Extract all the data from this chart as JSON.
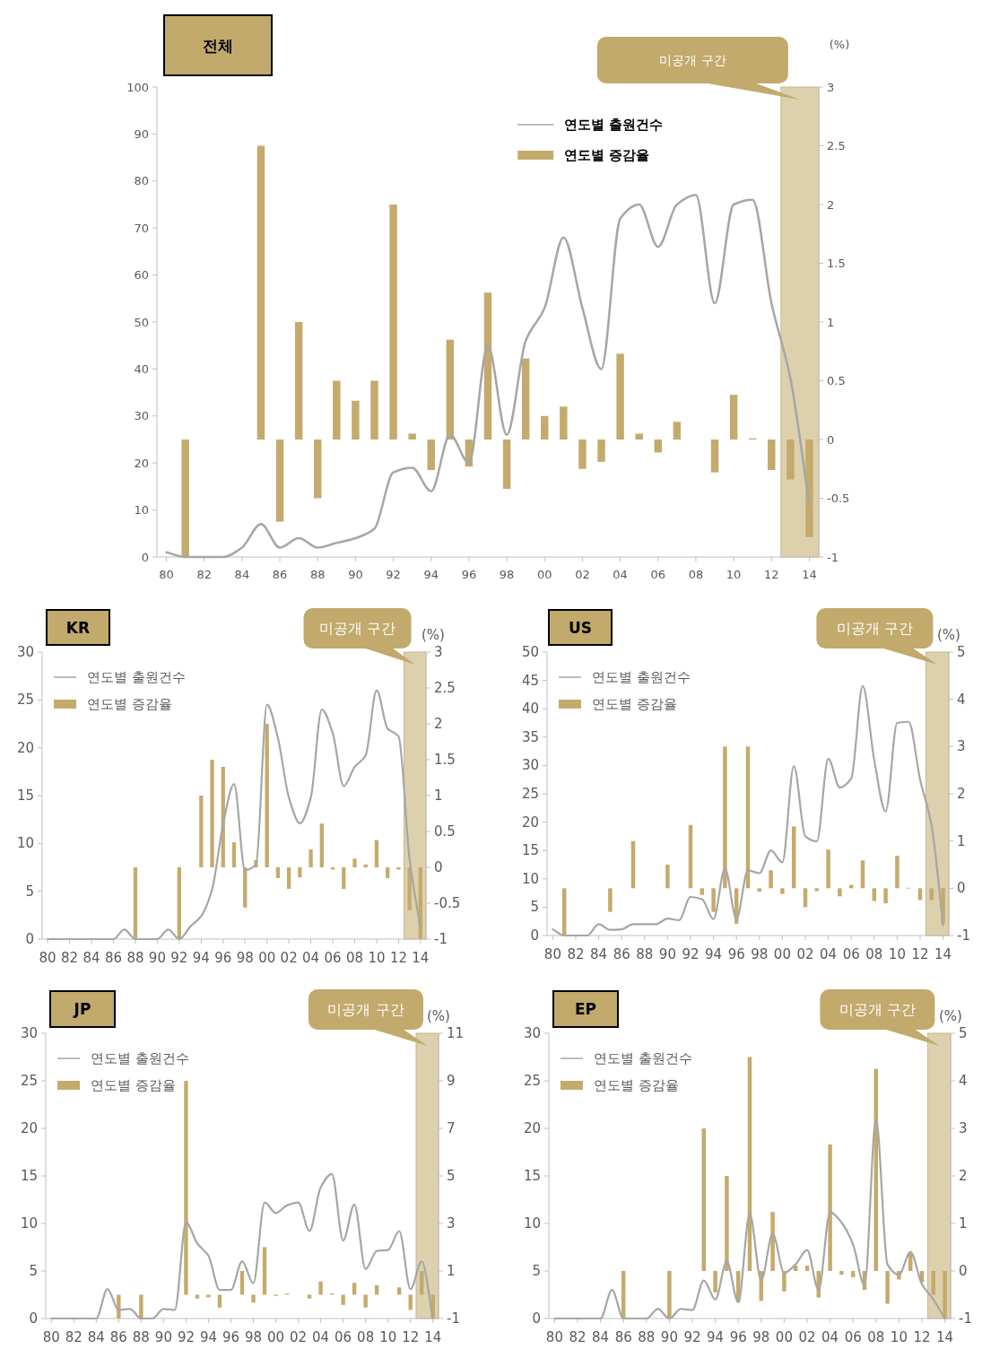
{
  "chart_data": [
    {
      "type": "bar",
      "title": "전체",
      "y2label": "(%)",
      "legend": "top",
      "x": [
        1980,
        1981,
        1982,
        1983,
        1984,
        1985,
        1986,
        1987,
        1988,
        1989,
        1990,
        1991,
        1992,
        1993,
        1994,
        1995,
        1996,
        1997,
        1998,
        1999,
        2000,
        2001,
        2002,
        2003,
        2004,
        2005,
        2006,
        2007,
        2008,
        2009,
        2010,
        2011,
        2012,
        2013,
        2014
      ],
      "xlim": [
        1979.5,
        2014.5
      ],
      "xticks": [
        {
          "value": 1980,
          "label": "80"
        },
        {
          "value": 1982,
          "label": "82"
        },
        {
          "value": 1984,
          "label": "84"
        },
        {
          "value": 1986,
          "label": "86"
        },
        {
          "value": 1988,
          "label": "88"
        },
        {
          "value": 1990,
          "label": "90"
        },
        {
          "value": 1992,
          "label": "92"
        },
        {
          "value": 1994,
          "label": "94"
        },
        {
          "value": 1996,
          "label": "96"
        },
        {
          "value": 1998,
          "label": "98"
        },
        {
          "value": 2000,
          "label": "00"
        },
        {
          "value": 2002,
          "label": "02"
        },
        {
          "value": 2004,
          "label": "04"
        },
        {
          "value": 2006,
          "label": "06"
        },
        {
          "value": 2008,
          "label": "08"
        },
        {
          "value": 2010,
          "label": "10"
        },
        {
          "value": 2012,
          "label": "12"
        },
        {
          "value": 2014,
          "label": "14"
        }
      ],
      "ylim": [
        0,
        100
      ],
      "yticks": [
        0,
        10,
        20,
        30,
        40,
        50,
        60,
        70,
        80,
        90,
        100
      ],
      "y2lim": [
        -1,
        3
      ],
      "y2ticks": [
        -1,
        -0.5,
        0,
        0.5,
        1,
        1.5,
        2,
        2.5,
        3
      ],
      "bands": [
        {
          "axis": "x",
          "from": 2012.5,
          "to": 2014.5,
          "label": "미공개 구간",
          "color": "#ddd0ad"
        }
      ],
      "series": [
        {
          "name": "연도별 출원건수",
          "type": "line",
          "color": "#a6a6a6",
          "values": [
            1,
            0,
            0,
            0,
            2,
            7,
            2,
            4,
            2,
            3,
            4,
            6,
            18,
            19,
            14,
            26,
            20,
            45,
            26,
            46,
            53,
            68,
            53,
            40,
            72,
            75,
            66,
            75,
            77,
            54,
            75,
            76,
            54,
            38,
            11
          ]
        },
        {
          "name": "연도별 증감율",
          "type": "bar",
          "axis": "y2",
          "color": "#c4aa6c",
          "values": [
            null,
            -1,
            null,
            null,
            null,
            2.5,
            -0.7,
            1,
            -0.5,
            0.5,
            0.33,
            0.5,
            2,
            0.05,
            -0.26,
            0.85,
            -0.23,
            1.25,
            -0.42,
            0.69,
            0.2,
            0.28,
            -0.25,
            -0.19,
            0.73,
            0.05,
            -0.11,
            0.15,
            null,
            -0.28,
            0.38,
            0.01,
            -0.26,
            -0.34,
            -0.83
          ]
        }
      ]
    },
    {
      "type": "bar",
      "title": "KR",
      "y2label": "(%)",
      "legend": "top left",
      "x": [
        1980,
        1981,
        1982,
        1983,
        1984,
        1985,
        1986,
        1987,
        1988,
        1989,
        1990,
        1991,
        1992,
        1993,
        1994,
        1995,
        1996,
        1997,
        1998,
        1999,
        2000,
        2001,
        2002,
        2003,
        2004,
        2005,
        2006,
        2007,
        2008,
        2009,
        2010,
        2011,
        2012,
        2013,
        2014
      ],
      "xlim": [
        1979.5,
        2014.5
      ],
      "xticks": [
        {
          "value": 1980,
          "label": "80"
        },
        {
          "value": 1982,
          "label": "82"
        },
        {
          "value": 1984,
          "label": "84"
        },
        {
          "value": 1986,
          "label": "86"
        },
        {
          "value": 1988,
          "label": "88"
        },
        {
          "value": 1990,
          "label": "90"
        },
        {
          "value": 1992,
          "label": "92"
        },
        {
          "value": 1994,
          "label": "94"
        },
        {
          "value": 1996,
          "label": "96"
        },
        {
          "value": 1998,
          "label": "98"
        },
        {
          "value": 2000,
          "label": "00"
        },
        {
          "value": 2002,
          "label": "02"
        },
        {
          "value": 2004,
          "label": "04"
        },
        {
          "value": 2006,
          "label": "06"
        },
        {
          "value": 2008,
          "label": "08"
        },
        {
          "value": 2010,
          "label": "10"
        },
        {
          "value": 2012,
          "label": "12"
        },
        {
          "value": 2014,
          "label": "14"
        }
      ],
      "ylim": [
        0,
        30
      ],
      "yticks": [
        0,
        5,
        10,
        15,
        20,
        25,
        30
      ],
      "y2lim": [
        -1,
        3
      ],
      "y2ticks": [
        -1,
        -0.5,
        0,
        0.5,
        1,
        1.5,
        2,
        2.5,
        3
      ],
      "bands": [
        {
          "axis": "x",
          "from": 2012.5,
          "to": 2014.5,
          "label": "미공개 구간",
          "color": "#ddd0ad"
        }
      ],
      "series": [
        {
          "name": "연도별 출원건수",
          "type": "line",
          "color": "#a6a6a6",
          "values": [
            0,
            0,
            0,
            0,
            0,
            0,
            0,
            1,
            0,
            0,
            0,
            1,
            0,
            1.3,
            2.4,
            5.2,
            12,
            16.2,
            7.2,
            7.8,
            24.5,
            21,
            14.8,
            12.1,
            14.8,
            24,
            21.5,
            16,
            18,
            19.2,
            26,
            22,
            21.2,
            8.4,
            1.1
          ]
        },
        {
          "name": "연도별 증감율",
          "type": "bar",
          "axis": "y2",
          "color": "#c4aa6c",
          "values": [
            null,
            null,
            null,
            null,
            null,
            null,
            null,
            null,
            -1,
            null,
            null,
            null,
            -1,
            null,
            1,
            1.5,
            1.4,
            0.35,
            -0.56,
            0.1,
            2,
            -0.15,
            -0.3,
            -0.14,
            0.25,
            0.61,
            -0.03,
            -0.3,
            0.12,
            0.04,
            0.38,
            -0.15,
            -0.03,
            -0.6,
            -1
          ]
        }
      ]
    },
    {
      "type": "bar",
      "title": "US",
      "y2label": "(%)",
      "legend": "top left",
      "x": [
        1980,
        1981,
        1982,
        1983,
        1984,
        1985,
        1986,
        1987,
        1988,
        1989,
        1990,
        1991,
        1992,
        1993,
        1994,
        1995,
        1996,
        1997,
        1998,
        1999,
        2000,
        2001,
        2002,
        2003,
        2004,
        2005,
        2006,
        2007,
        2008,
        2009,
        2010,
        2011,
        2012,
        2013,
        2014
      ],
      "xlim": [
        1979.5,
        2014.5
      ],
      "xticks": [
        {
          "value": 1980,
          "label": "80"
        },
        {
          "value": 1982,
          "label": "82"
        },
        {
          "value": 1984,
          "label": "84"
        },
        {
          "value": 1986,
          "label": "86"
        },
        {
          "value": 1988,
          "label": "88"
        },
        {
          "value": 1990,
          "label": "90"
        },
        {
          "value": 1992,
          "label": "92"
        },
        {
          "value": 1994,
          "label": "94"
        },
        {
          "value": 1996,
          "label": "96"
        },
        {
          "value": 1998,
          "label": "98"
        },
        {
          "value": 2000,
          "label": "00"
        },
        {
          "value": 2002,
          "label": "02"
        },
        {
          "value": 2004,
          "label": "04"
        },
        {
          "value": 2006,
          "label": "06"
        },
        {
          "value": 2008,
          "label": "08"
        },
        {
          "value": 2010,
          "label": "10"
        },
        {
          "value": 2012,
          "label": "12"
        },
        {
          "value": 2014,
          "label": "14"
        }
      ],
      "ylim": [
        0,
        50
      ],
      "yticks": [
        0,
        5,
        10,
        15,
        20,
        25,
        30,
        35,
        40,
        45,
        50
      ],
      "y2lim": [
        -1,
        5
      ],
      "y2ticks": [
        -1,
        0,
        1,
        2,
        3,
        4,
        5
      ],
      "bands": [
        {
          "axis": "x",
          "from": 2012.5,
          "to": 2014.5,
          "label": "미공개 구간",
          "color": "#ddd0ad"
        }
      ],
      "series": [
        {
          "name": "연도별 출원건수",
          "type": "line",
          "color": "#a6a6a6",
          "values": [
            1.1,
            0,
            0,
            0,
            2,
            1,
            1.1,
            2,
            2,
            2,
            3,
            2.7,
            6.8,
            6.4,
            2.9,
            11.8,
            2.9,
            11.5,
            11,
            15,
            12.9,
            29.9,
            17.5,
            16.6,
            31.2,
            26.1,
            27.7,
            44,
            31,
            21.9,
            37.5,
            37.7,
            27.5,
            19.4,
            1.8
          ]
        },
        {
          "name": "연도별 증감율",
          "type": "bar",
          "axis": "y2",
          "color": "#c4aa6c",
          "values": [
            null,
            -1,
            null,
            null,
            null,
            -0.5,
            null,
            1,
            null,
            null,
            0.5,
            null,
            1.34,
            -0.14,
            -0.5,
            3,
            -0.75,
            3,
            -0.07,
            0.38,
            -0.12,
            1.31,
            -0.4,
            -0.06,
            0.82,
            -0.17,
            0.07,
            0.59,
            -0.27,
            -0.32,
            0.69,
            0.01,
            -0.25,
            -0.25,
            -0.75
          ]
        }
      ]
    },
    {
      "type": "bar",
      "title": "JP",
      "y2label": "(%)",
      "legend": "top left",
      "x": [
        1980,
        1981,
        1982,
        1983,
        1984,
        1985,
        1986,
        1987,
        1988,
        1989,
        1990,
        1991,
        1992,
        1993,
        1994,
        1995,
        1996,
        1997,
        1998,
        1999,
        2000,
        2001,
        2002,
        2003,
        2004,
        2005,
        2006,
        2007,
        2008,
        2009,
        2010,
        2011,
        2012,
        2013,
        2014
      ],
      "xlim": [
        1979.5,
        2014.5
      ],
      "xticks": [
        {
          "value": 1980,
          "label": "80"
        },
        {
          "value": 1982,
          "label": "82"
        },
        {
          "value": 1984,
          "label": "84"
        },
        {
          "value": 1986,
          "label": "86"
        },
        {
          "value": 1988,
          "label": "88"
        },
        {
          "value": 1990,
          "label": "90"
        },
        {
          "value": 1992,
          "label": "92"
        },
        {
          "value": 1994,
          "label": "94"
        },
        {
          "value": 1996,
          "label": "96"
        },
        {
          "value": 1998,
          "label": "98"
        },
        {
          "value": 2000,
          "label": "00"
        },
        {
          "value": 2002,
          "label": "02"
        },
        {
          "value": 2004,
          "label": "04"
        },
        {
          "value": 2006,
          "label": "06"
        },
        {
          "value": 2008,
          "label": "08"
        },
        {
          "value": 2010,
          "label": "10"
        },
        {
          "value": 2012,
          "label": "12"
        },
        {
          "value": 2014,
          "label": "14"
        }
      ],
      "ylim": [
        0,
        30
      ],
      "yticks": [
        0,
        5,
        10,
        15,
        20,
        25,
        30
      ],
      "y2lim": [
        -1,
        11
      ],
      "y2ticks": [
        -1,
        1,
        3,
        5,
        7,
        9,
        11
      ],
      "bands": [
        {
          "axis": "x",
          "from": 2012.5,
          "to": 2014.5,
          "label": "미공개 구간",
          "color": "#ddd0ad"
        }
      ],
      "series": [
        {
          "name": "연도별 출원건수",
          "type": "line",
          "color": "#a6a6a6",
          "values": [
            0,
            0,
            0,
            0,
            0,
            3.1,
            0.9,
            1,
            0,
            0,
            1,
            0.9,
            10.1,
            7.9,
            6.6,
            3,
            3,
            6,
            3.7,
            12.2,
            11.1,
            11.9,
            12.2,
            9.2,
            13.8,
            15.2,
            8.2,
            12,
            5.2,
            7.1,
            7.2,
            9.2,
            3.1,
            6,
            0
          ]
        },
        {
          "name": "연도별 증감율",
          "type": "bar",
          "axis": "y2",
          "color": "#c4aa6c",
          "values": [
            null,
            null,
            null,
            null,
            null,
            null,
            -1,
            null,
            -1,
            null,
            null,
            null,
            9,
            -0.16,
            -0.11,
            -0.54,
            null,
            1,
            -0.33,
            2,
            -0.05,
            0.05,
            null,
            -0.16,
            0.56,
            0.05,
            -0.43,
            0.5,
            -0.54,
            0.4,
            null,
            0.31,
            -0.64,
            1,
            -1
          ]
        }
      ]
    },
    {
      "type": "bar",
      "title": "EP",
      "y2label": "(%)",
      "legend": "top left",
      "x": [
        1980,
        1981,
        1982,
        1983,
        1984,
        1985,
        1986,
        1987,
        1988,
        1989,
        1990,
        1991,
        1992,
        1993,
        1994,
        1995,
        1996,
        1997,
        1998,
        1999,
        2000,
        2001,
        2002,
        2003,
        2004,
        2005,
        2006,
        2007,
        2008,
        2009,
        2010,
        2011,
        2012,
        2013,
        2014
      ],
      "xlim": [
        1979.5,
        2014.5
      ],
      "xticks": [
        {
          "value": 1980,
          "label": "80"
        },
        {
          "value": 1982,
          "label": "82"
        },
        {
          "value": 1984,
          "label": "84"
        },
        {
          "value": 1986,
          "label": "86"
        },
        {
          "value": 1988,
          "label": "88"
        },
        {
          "value": 1990,
          "label": "90"
        },
        {
          "value": 1992,
          "label": "92"
        },
        {
          "value": 1994,
          "label": "94"
        },
        {
          "value": 1996,
          "label": "96"
        },
        {
          "value": 1998,
          "label": "98"
        },
        {
          "value": 2000,
          "label": "00"
        },
        {
          "value": 2002,
          "label": "02"
        },
        {
          "value": 2004,
          "label": "04"
        },
        {
          "value": 2006,
          "label": "06"
        },
        {
          "value": 2008,
          "label": "08"
        },
        {
          "value": 2010,
          "label": "10"
        },
        {
          "value": 2012,
          "label": "12"
        },
        {
          "value": 2014,
          "label": "14"
        }
      ],
      "ylim": [
        0,
        30
      ],
      "yticks": [
        0,
        5,
        10,
        15,
        20,
        25,
        30
      ],
      "y2lim": [
        -1,
        5
      ],
      "y2ticks": [
        -1,
        0,
        1,
        2,
        3,
        4,
        5
      ],
      "bands": [
        {
          "axis": "x",
          "from": 2012.5,
          "to": 2014.5,
          "label": "미공개 구간",
          "color": "#ddd0ad"
        }
      ],
      "series": [
        {
          "name": "연도별 출원건수",
          "type": "line",
          "color": "#a6a6a6",
          "values": [
            0,
            0,
            0,
            0,
            0,
            3,
            0,
            0,
            0,
            1,
            0,
            1,
            0.9,
            4,
            2,
            6,
            1.7,
            11,
            4,
            8.9,
            4.8,
            5.7,
            7.2,
            3,
            11.2,
            10.1,
            7.8,
            3.5,
            21,
            5.7,
            4.6,
            7,
            3.6,
            2,
            0
          ]
        },
        {
          "name": "연도별 증감율",
          "type": "bar",
          "axis": "y2",
          "color": "#c4aa6c",
          "values": [
            null,
            null,
            null,
            null,
            null,
            null,
            -1,
            null,
            null,
            null,
            -1,
            null,
            null,
            3,
            -0.45,
            2,
            -0.66,
            4.5,
            -0.63,
            1.24,
            -0.43,
            0.11,
            0.11,
            -0.56,
            2.66,
            -0.08,
            -0.13,
            -0.4,
            4.25,
            -0.69,
            -0.18,
            0.37,
            -0.24,
            -0.5,
            -1
          ]
        }
      ]
    }
  ]
}
